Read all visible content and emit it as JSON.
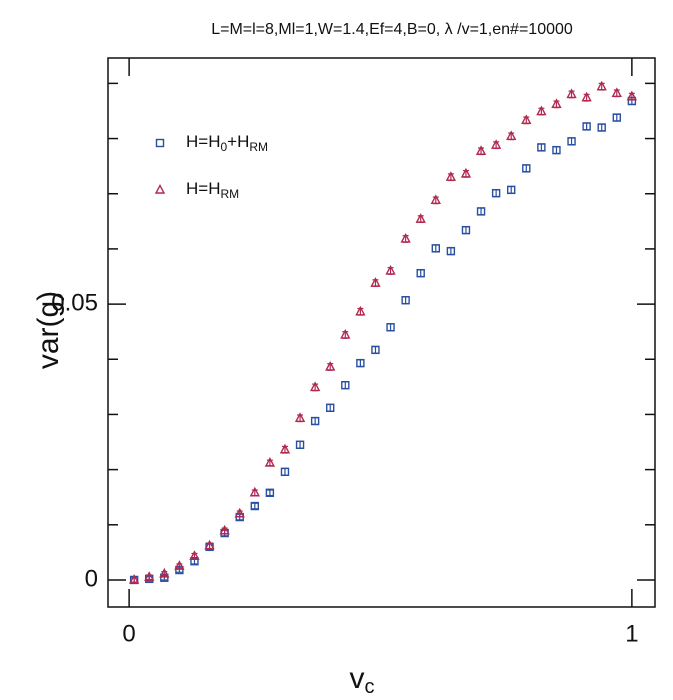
{
  "chart_data": {
    "type": "scatter",
    "title": "L=M=l=8,Ml=1,W=1.4,Ef=4,B=0, λ /v=1,en#=10000",
    "xlabel": [
      "v",
      "c"
    ],
    "ylabel": "var(g)",
    "xlim": [
      -0.042,
      1.046
    ],
    "ylim": [
      -0.0049,
      0.0946
    ],
    "xticks": [
      0,
      1
    ],
    "yticks": [
      0,
      0.05
    ],
    "minor_yticks": [
      0.01,
      0.02,
      0.03,
      0.04,
      0.06,
      0.07,
      0.08,
      0.09
    ],
    "x": [
      0.01,
      0.04,
      0.07,
      0.1,
      0.13,
      0.16,
      0.19,
      0.22,
      0.25,
      0.28,
      0.31,
      0.34,
      0.37,
      0.4,
      0.43,
      0.46,
      0.49,
      0.52,
      0.55,
      0.58,
      0.61,
      0.64,
      0.67,
      0.7,
      0.73,
      0.76,
      0.79,
      0.82,
      0.85,
      0.88,
      0.91,
      0.94,
      0.97,
      1.0
    ],
    "series": [
      {
        "name": [
          "H=H",
          "0",
          "+H",
          "RM"
        ],
        "marker": "square",
        "color": "#2a4fa0",
        "values": [
          0,
          0.0002,
          0.0004,
          0.0018,
          0.0034,
          0.006,
          0.0085,
          0.0114,
          0.0134,
          0.0158,
          0.0196,
          0.0245,
          0.0288,
          0.0312,
          0.0353,
          0.0393,
          0.0417,
          0.0458,
          0.0507,
          0.0556,
          0.0601,
          0.0596,
          0.0634,
          0.0668,
          0.0701,
          0.0707,
          0.0746,
          0.0784,
          0.0779,
          0.0795,
          0.0822,
          0.082,
          0.0838,
          0.0868
        ],
        "errors": [
          0.0004,
          0.0004,
          0.0004,
          0.0004,
          0.0005,
          0.0005,
          0.0005,
          0.0005,
          0.0005,
          0.0005,
          0.0006,
          0.0006,
          0.0006,
          0.0006,
          0.0006,
          0.0006,
          0.0006,
          0.0006,
          0.0006,
          0.0006,
          0.0006,
          0.0006,
          0.0006,
          0.0006,
          0.0006,
          0.0006,
          0.0006,
          0.0006,
          0.0006,
          0.0006,
          0.0006,
          0.0006,
          0.0006,
          0.0006
        ]
      },
      {
        "name": [
          "H=H",
          "RM"
        ],
        "marker": "triangle",
        "color": "#b02a50",
        "values": [
          0,
          0.0005,
          0.0011,
          0.0025,
          0.0043,
          0.0062,
          0.0089,
          0.012,
          0.0158,
          0.0212,
          0.0236,
          0.0293,
          0.0349,
          0.0386,
          0.0444,
          0.0486,
          0.0538,
          0.056,
          0.0618,
          0.0654,
          0.0688,
          0.073,
          0.0736,
          0.0777,
          0.0788,
          0.0804,
          0.0833,
          0.0849,
          0.0862,
          0.088,
          0.0874,
          0.0894,
          0.0882,
          0.0876
        ],
        "errors": [
          0.0004,
          0.0004,
          0.0004,
          0.0004,
          0.0005,
          0.0005,
          0.0005,
          0.0005,
          0.0005,
          0.0005,
          0.0006,
          0.0006,
          0.0006,
          0.0006,
          0.0006,
          0.0006,
          0.0006,
          0.0006,
          0.0006,
          0.0006,
          0.0006,
          0.0006,
          0.0006,
          0.0006,
          0.0006,
          0.0006,
          0.0006,
          0.0006,
          0.0006,
          0.0006,
          0.0006,
          0.0006,
          0.0006,
          0.0006
        ]
      }
    ]
  }
}
